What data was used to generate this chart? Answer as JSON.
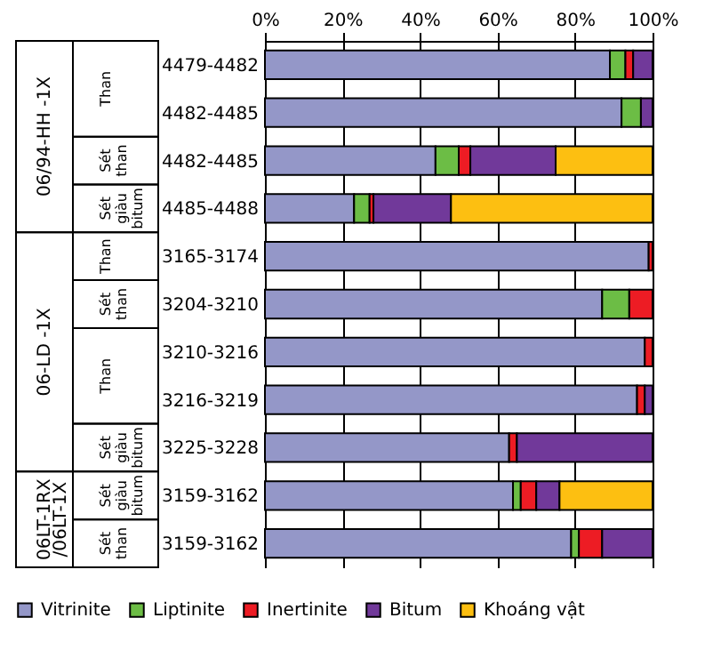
{
  "chart_data": {
    "type": "bar",
    "orientation": "horizontal",
    "stacked": true,
    "categories": [
      "4479-4482",
      "4482-4485",
      "4482-4485",
      "4485-4488",
      "3165-3174",
      "3204-3210",
      "3210-3216",
      "3216-3219",
      "3225-3228",
      "3159-3162",
      "3159-3162"
    ],
    "series": [
      {
        "name": "Vitrinite",
        "color": "#9497c8",
        "values": [
          89,
          92,
          44,
          23,
          99,
          87,
          98,
          96,
          63,
          64,
          79
        ]
      },
      {
        "name": "Liptinite",
        "color": "#6cbd45",
        "values": [
          4,
          5,
          6,
          4,
          0,
          7,
          0,
          0,
          0,
          2,
          2
        ]
      },
      {
        "name": "Inertinite",
        "color": "#ed1c24",
        "values": [
          2,
          0,
          3,
          1,
          1,
          6,
          2,
          2,
          2,
          4,
          6
        ]
      },
      {
        "name": "Bitum",
        "color": "#71399a",
        "values": [
          5,
          3,
          22,
          20,
          0,
          0,
          0,
          2,
          35,
          6,
          13
        ]
      },
      {
        "name": "Khoáng vật",
        "color": "#fdbf11",
        "values": [
          0,
          0,
          25,
          52,
          0,
          0,
          0,
          0,
          0,
          24,
          0
        ]
      }
    ],
    "xlim": [
      0,
      100
    ],
    "xticks": [
      {
        "value": 0,
        "label": "0%"
      },
      {
        "value": 20,
        "label": "20%"
      },
      {
        "value": 40,
        "label": "40%"
      },
      {
        "value": 60,
        "label": "60%"
      },
      {
        "value": 80,
        "label": "80%"
      },
      {
        "value": 100,
        "label": "100%"
      }
    ],
    "grid": "x",
    "legend": "bottom",
    "annotations": [
      "06/94-HH -1X",
      "Than",
      "Sét\nthan",
      "Sét\ngiàu\nbitum",
      "06-LD -1X",
      "Than",
      "Sét\nthan",
      "Than",
      "Sét\ngiàu\nbitum",
      "06LT-1RX\n/06LT-1X",
      "Sét\ngiàu\nbitum",
      "Sét\nthan"
    ]
  }
}
